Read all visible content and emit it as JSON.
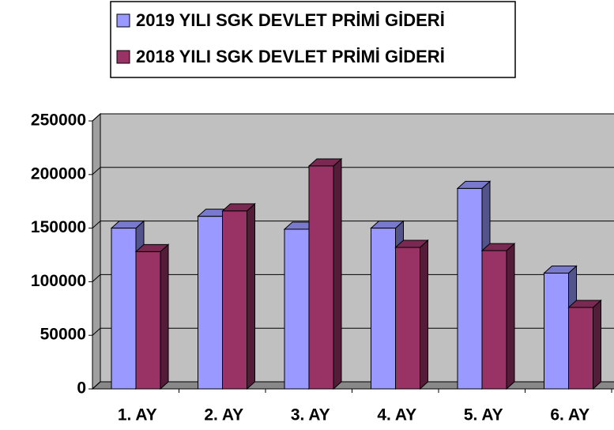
{
  "chart_data": {
    "type": "bar3d",
    "categories": [
      "1. AY",
      "2. AY",
      "3. AY",
      "4. AY",
      "5. AY",
      "6. AY"
    ],
    "series": [
      {
        "name": "2019 YILI SGK DEVLET PRİMİ GİDERİ",
        "color": "#9999ff",
        "values": [
          150000,
          161000,
          149000,
          150000,
          187000,
          108000
        ]
      },
      {
        "name": "2018 YILI SGK DEVLET PRİMİ GİDERİ",
        "color": "#993366",
        "values": [
          128000,
          166000,
          208000,
          132000,
          129000,
          76000
        ]
      }
    ],
    "ylim": [
      0,
      250000
    ],
    "yticks": [
      0,
      50000,
      100000,
      150000,
      200000,
      250000
    ],
    "grid": true,
    "wall_color": "#c0c0c0"
  }
}
